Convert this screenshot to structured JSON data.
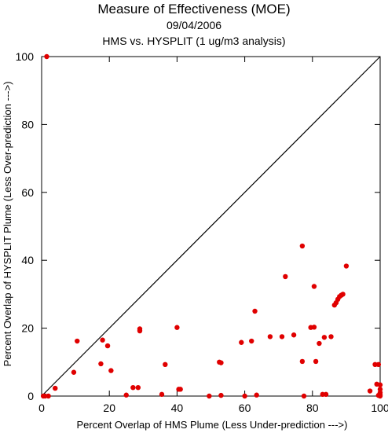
{
  "chart_data": {
    "type": "scatter",
    "title": "Measure of Effectiveness (MOE)",
    "subtitle_date": "09/04/2006",
    "subtitle_analysis": "HMS vs. HYSPLIT  (1 ug/m3 analysis)",
    "xlabel": "Percent Overlap of HMS Plume (Less Under-prediction --->)",
    "ylabel": "Percent Overlap of HYSPLIT Plume (Less Over-prediction --->)",
    "xlim": [
      0,
      100
    ],
    "ylim": [
      0,
      100
    ],
    "xticks": [
      0,
      20,
      40,
      60,
      80,
      100
    ],
    "yticks": [
      0,
      20,
      40,
      60,
      80,
      100
    ],
    "grid": false,
    "diagonal_line": true,
    "marker_color": "#e00000",
    "points": [
      [
        1.5,
        100
      ],
      [
        0.5,
        0
      ],
      [
        1,
        0
      ],
      [
        2,
        0
      ],
      [
        4,
        2.3
      ],
      [
        9.5,
        7
      ],
      [
        10.5,
        16.2
      ],
      [
        17.5,
        9.5
      ],
      [
        18,
        16.5
      ],
      [
        19.5,
        14.8
      ],
      [
        20.5,
        7.5
      ],
      [
        25,
        0.3
      ],
      [
        27,
        2.5
      ],
      [
        28.5,
        2.5
      ],
      [
        29,
        19.8
      ],
      [
        29,
        19.2
      ],
      [
        35.5,
        0.5
      ],
      [
        36.5,
        9.3
      ],
      [
        40,
        20.2
      ],
      [
        40.5,
        2
      ],
      [
        41,
        2
      ],
      [
        49.5,
        0
      ],
      [
        52.5,
        10
      ],
      [
        53,
        9.8
      ],
      [
        53,
        0.2
      ],
      [
        59,
        15.8
      ],
      [
        60,
        0
      ],
      [
        62,
        16.2
      ],
      [
        63,
        25
      ],
      [
        63.5,
        0.3
      ],
      [
        67.5,
        17.5
      ],
      [
        71,
        17.5
      ],
      [
        72,
        35.2
      ],
      [
        74.5,
        18
      ],
      [
        77,
        44.2
      ],
      [
        77,
        10.2
      ],
      [
        77.5,
        0
      ],
      [
        79.5,
        20.2
      ],
      [
        80.5,
        20.3
      ],
      [
        80.5,
        32.3
      ],
      [
        81,
        10.2
      ],
      [
        82,
        15.5
      ],
      [
        83,
        0.5
      ],
      [
        83.5,
        17.3
      ],
      [
        84,
        0.5
      ],
      [
        85.5,
        17.5
      ],
      [
        86.5,
        26.8
      ],
      [
        87,
        27.5
      ],
      [
        87.5,
        28.5
      ],
      [
        88,
        29.3
      ],
      [
        88.5,
        29.7
      ],
      [
        89,
        30
      ],
      [
        90,
        38.3
      ],
      [
        97,
        1.5
      ],
      [
        98.5,
        9.3
      ],
      [
        99,
        3.5
      ],
      [
        99.5,
        9.3
      ],
      [
        99.5,
        0.2
      ],
      [
        100,
        3.3
      ],
      [
        100,
        2
      ],
      [
        100,
        1
      ],
      [
        100,
        0.4
      ],
      [
        100,
        0
      ]
    ]
  }
}
